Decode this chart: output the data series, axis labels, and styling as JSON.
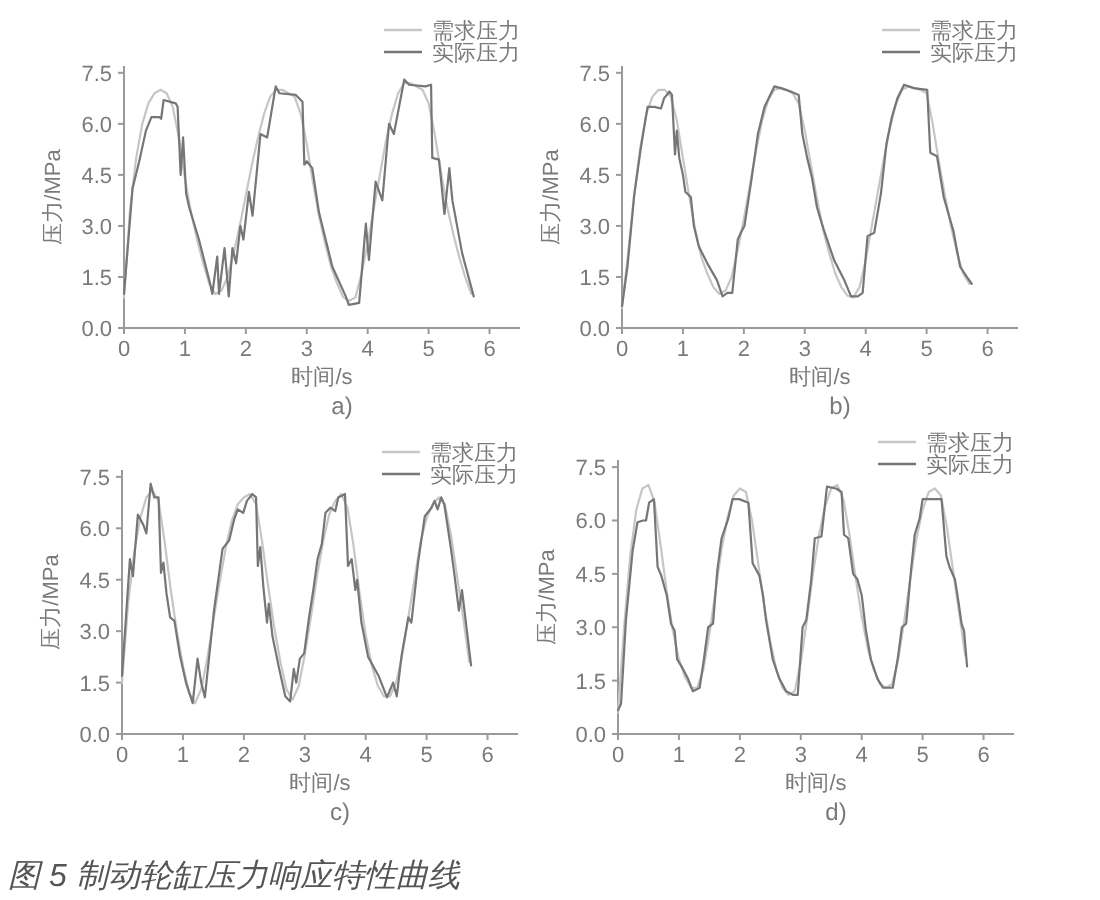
{
  "chart_data": [
    {
      "type": "line",
      "title": "a)",
      "xlabel": "时间/s",
      "ylabel": "压力/MPa",
      "xlim": [
        0,
        6.5
      ],
      "ylim": [
        0,
        7.7
      ],
      "xticks": [
        0,
        1,
        2,
        3,
        4,
        5,
        6
      ],
      "yticks": [
        {
          "value": 0,
          "label": "0.0"
        },
        1.5,
        {
          "value": 3,
          "label": "3.0"
        },
        4.5,
        {
          "value": 6,
          "label": "6.0"
        },
        7.5
      ],
      "legend": "top right",
      "series": [
        {
          "name": "需求压力",
          "color": "#c6c6c6",
          "x": [
            0,
            0.1,
            0.2,
            0.3,
            0.4,
            0.5,
            0.6,
            0.7,
            0.8,
            0.9,
            1.0,
            1.1,
            1.2,
            1.3,
            1.4,
            1.5,
            1.6,
            1.7,
            1.8,
            1.9,
            2.0,
            2.1,
            2.2,
            2.3,
            2.4,
            2.5,
            2.6,
            2.7,
            2.8,
            2.9,
            3.0,
            3.1,
            3.2,
            3.3,
            3.4,
            3.5,
            3.6,
            3.7,
            3.8,
            3.9,
            4.0,
            4.1,
            4.2,
            4.3,
            4.4,
            4.5,
            4.6,
            4.7,
            4.8,
            4.9,
            5.0,
            5.1,
            5.2,
            5.3,
            5.4,
            5.5,
            5.6,
            5.7
          ],
          "values": [
            0.9,
            3.5,
            5.0,
            6.0,
            6.6,
            6.9,
            7.0,
            6.9,
            6.5,
            5.6,
            4.4,
            3.4,
            2.6,
            1.9,
            1.3,
            1.0,
            1.1,
            1.5,
            2.2,
            3.0,
            3.9,
            4.8,
            5.6,
            6.3,
            6.8,
            7.0,
            7.0,
            6.9,
            6.8,
            6.3,
            5.4,
            4.3,
            3.3,
            2.5,
            1.8,
            1.3,
            0.9,
            0.8,
            0.9,
            1.6,
            2.5,
            3.5,
            4.5,
            5.5,
            6.3,
            6.9,
            7.2,
            7.2,
            7.1,
            7.0,
            6.6,
            5.7,
            4.6,
            3.6,
            2.8,
            2.1,
            1.5,
            1.0
          ]
        },
        {
          "name": "实际压力",
          "color": "#767676",
          "x": [
            0,
            0.14,
            0.25,
            0.36,
            0.45,
            0.58,
            0.61,
            0.65,
            0.85,
            0.88,
            0.93,
            0.97,
            1.02,
            1.07,
            1.23,
            1.4,
            1.45,
            1.53,
            1.56,
            1.65,
            1.72,
            1.78,
            1.84,
            1.91,
            1.96,
            2.05,
            2.11,
            2.24,
            2.35,
            2.49,
            2.55,
            2.82,
            2.93,
            2.96,
            3.0,
            3.09,
            3.2,
            3.42,
            3.64,
            3.69,
            3.86,
            3.97,
            4.02,
            4.13,
            4.24,
            4.35,
            4.43,
            4.6,
            4.68,
            4.95,
            5.04,
            5.06,
            5.17,
            5.26,
            5.34,
            5.39,
            5.55,
            5.74
          ],
          "values": [
            1.0,
            4.1,
            4.9,
            5.8,
            6.2,
            6.2,
            6.15,
            6.7,
            6.6,
            6.5,
            4.5,
            5.6,
            3.95,
            3.55,
            2.6,
            1.4,
            1.0,
            2.1,
            1.0,
            2.35,
            0.93,
            2.35,
            1.9,
            3.0,
            2.6,
            4.0,
            3.3,
            5.7,
            5.6,
            7.1,
            6.9,
            6.85,
            6.65,
            4.8,
            4.9,
            4.7,
            3.4,
            1.8,
            0.93,
            0.68,
            0.74,
            3.07,
            2.0,
            4.3,
            3.75,
            6.0,
            5.7,
            7.3,
            7.15,
            7.1,
            7.15,
            5.0,
            4.95,
            3.35,
            4.7,
            3.75,
            2.2,
            0.93
          ]
        }
      ]
    },
    {
      "type": "line",
      "title": "b)",
      "xlabel": "时间/s",
      "ylabel": "压力/MPa",
      "xlim": [
        0,
        6.5
      ],
      "ylim": [
        0,
        7.7
      ],
      "xticks": [
        0,
        1,
        2,
        3,
        4,
        5,
        6
      ],
      "yticks": [
        {
          "value": 0,
          "label": "0.0"
        },
        1.5,
        {
          "value": 3,
          "label": "3.0"
        },
        4.5,
        {
          "value": 6,
          "label": "6.0"
        },
        7.5
      ],
      "legend": "top right",
      "series": [
        {
          "name": "需求压力",
          "color": "#c6c6c6",
          "x": [
            0,
            0.1,
            0.2,
            0.3,
            0.4,
            0.5,
            0.6,
            0.7,
            0.8,
            0.9,
            1.0,
            1.1,
            1.2,
            1.3,
            1.4,
            1.5,
            1.6,
            1.7,
            1.8,
            1.9,
            2.0,
            2.1,
            2.2,
            2.3,
            2.4,
            2.5,
            2.6,
            2.7,
            2.8,
            2.9,
            3.0,
            3.1,
            3.2,
            3.3,
            3.4,
            3.5,
            3.6,
            3.7,
            3.8,
            3.9,
            4.0,
            4.1,
            4.2,
            4.3,
            4.4,
            4.5,
            4.6,
            4.7,
            4.8,
            4.9,
            5.0,
            5.1,
            5.2,
            5.3,
            5.4,
            5.5,
            5.6,
            5.7
          ],
          "values": [
            0.6,
            2.2,
            3.9,
            5.3,
            6.3,
            6.8,
            7.0,
            7.0,
            6.8,
            6.1,
            5.0,
            3.9,
            2.9,
            2.1,
            1.6,
            1.2,
            1.0,
            1.1,
            1.5,
            2.3,
            3.2,
            4.2,
            5.2,
            6.1,
            6.7,
            7.0,
            7.05,
            7.0,
            6.9,
            6.6,
            5.8,
            4.8,
            3.8,
            2.9,
            2.2,
            1.6,
            1.2,
            0.95,
            0.9,
            1.2,
            2.0,
            3.0,
            4.0,
            5.0,
            5.9,
            6.6,
            7.0,
            7.1,
            7.05,
            7.0,
            6.9,
            6.0,
            4.9,
            3.9,
            3.0,
            2.2,
            1.6,
            1.3
          ]
        },
        {
          "name": "实际压力",
          "color": "#767676",
          "x": [
            0,
            0.09,
            0.2,
            0.31,
            0.42,
            0.53,
            0.64,
            0.69,
            0.78,
            0.82,
            0.87,
            0.9,
            0.94,
            1.0,
            1.04,
            1.13,
            1.18,
            1.26,
            1.4,
            1.56,
            1.65,
            1.73,
            1.81,
            1.9,
            1.95,
            2.01,
            2.12,
            2.23,
            2.34,
            2.5,
            2.61,
            2.77,
            2.9,
            2.96,
            3.04,
            3.12,
            3.2,
            3.31,
            3.48,
            3.65,
            3.76,
            3.87,
            3.95,
            4.03,
            4.14,
            4.25,
            4.34,
            4.43,
            4.52,
            4.63,
            4.79,
            5.01,
            5.06,
            5.17,
            5.28,
            5.36,
            5.44,
            5.55,
            5.66,
            5.74
          ],
          "values": [
            0.64,
            1.8,
            3.9,
            5.3,
            6.5,
            6.5,
            6.45,
            6.75,
            6.95,
            6.85,
            5.1,
            5.8,
            5.0,
            4.5,
            4.0,
            3.85,
            3.0,
            2.4,
            1.9,
            1.4,
            0.93,
            1.03,
            1.03,
            2.6,
            2.8,
            3.0,
            4.3,
            5.7,
            6.5,
            7.1,
            7.05,
            6.95,
            6.85,
            5.7,
            5.0,
            4.4,
            3.55,
            2.9,
            2.0,
            1.4,
            0.93,
            0.93,
            1.03,
            2.7,
            2.8,
            3.95,
            5.4,
            6.2,
            6.75,
            7.15,
            7.05,
            7.0,
            5.15,
            5.05,
            3.85,
            3.35,
            2.85,
            1.8,
            1.5,
            1.3
          ]
        }
      ]
    },
    {
      "type": "line",
      "title": "c)",
      "xlabel": "时间/s",
      "ylabel": "压力/MPa",
      "xlim": [
        0,
        6.5
      ],
      "ylim": [
        0,
        7.7
      ],
      "xticks": [
        0,
        1,
        2,
        3,
        4,
        5,
        6
      ],
      "yticks": [
        {
          "value": 0,
          "label": "0.0"
        },
        1.5,
        {
          "value": 3,
          "label": "3.0"
        },
        4.5,
        {
          "value": 6,
          "label": "6.0"
        },
        7.5
      ],
      "legend": "top right",
      "series": [
        {
          "name": "需求压力",
          "color": "#c6c6c6",
          "x": [
            0,
            0.1,
            0.2,
            0.3,
            0.4,
            0.5,
            0.6,
            0.7,
            0.8,
            0.9,
            1.0,
            1.1,
            1.2,
            1.3,
            1.4,
            1.5,
            1.6,
            1.7,
            1.8,
            1.9,
            2.0,
            2.1,
            2.2,
            2.3,
            2.4,
            2.5,
            2.6,
            2.7,
            2.8,
            2.9,
            3.0,
            3.1,
            3.2,
            3.3,
            3.4,
            3.5,
            3.6,
            3.7,
            3.8,
            3.9,
            4.0,
            4.1,
            4.2,
            4.3,
            4.4,
            4.5,
            4.6,
            4.7,
            4.8,
            4.9,
            5.0,
            5.1,
            5.2,
            5.3,
            5.4,
            5.5,
            5.6,
            5.7
          ],
          "values": [
            1.5,
            3.8,
            5.3,
            6.3,
            6.9,
            7.1,
            6.8,
            5.6,
            4.2,
            3.0,
            2.0,
            1.2,
            0.9,
            1.3,
            2.2,
            3.3,
            4.4,
            5.4,
            6.2,
            6.7,
            6.9,
            7.0,
            6.7,
            5.6,
            4.3,
            3.1,
            2.1,
            1.3,
            1.0,
            1.4,
            2.3,
            3.4,
            4.6,
            5.6,
            6.4,
            6.8,
            7.0,
            6.6,
            5.5,
            4.1,
            2.9,
            2.0,
            1.4,
            1.1,
            1.1,
            1.5,
            2.3,
            3.4,
            4.5,
            5.6,
            6.3,
            6.7,
            6.9,
            6.7,
            5.8,
            4.6,
            3.4,
            2.1
          ]
        },
        {
          "name": "实际压力",
          "color": "#767676",
          "x": [
            0,
            0.08,
            0.13,
            0.18,
            0.26,
            0.35,
            0.4,
            0.47,
            0.53,
            0.6,
            0.64,
            0.68,
            0.73,
            0.79,
            0.86,
            0.95,
            1.05,
            1.16,
            1.24,
            1.3,
            1.36,
            1.51,
            1.65,
            1.76,
            1.84,
            1.9,
            1.99,
            2.05,
            2.14,
            2.2,
            2.23,
            2.27,
            2.32,
            2.38,
            2.41,
            2.47,
            2.58,
            2.68,
            2.76,
            2.82,
            2.86,
            2.92,
            2.99,
            3.07,
            3.14,
            3.21,
            3.28,
            3.34,
            3.42,
            3.5,
            3.55,
            3.66,
            3.71,
            3.77,
            3.83,
            3.86,
            3.93,
            4.04,
            4.21,
            4.35,
            4.45,
            4.51,
            4.59,
            4.7,
            4.75,
            4.86,
            4.97,
            5.08,
            5.13,
            5.18,
            5.24,
            5.29,
            5.4,
            5.46,
            5.53,
            5.58,
            5.73
          ],
          "values": [
            1.7,
            3.8,
            5.1,
            4.6,
            6.4,
            6.1,
            5.85,
            7.3,
            6.9,
            6.9,
            4.7,
            5.0,
            4.1,
            3.4,
            3.3,
            2.3,
            1.5,
            0.9,
            2.2,
            1.5,
            1.07,
            3.6,
            5.4,
            5.65,
            6.25,
            6.55,
            6.45,
            6.8,
            7.0,
            6.9,
            4.9,
            5.45,
            4.3,
            3.25,
            3.8,
            2.85,
            1.9,
            1.1,
            0.95,
            1.9,
            1.5,
            2.2,
            2.35,
            3.4,
            4.2,
            5.1,
            5.55,
            6.45,
            6.6,
            6.5,
            6.9,
            7.0,
            4.9,
            5.1,
            4.2,
            4.5,
            3.25,
            2.25,
            1.7,
            1.07,
            1.5,
            1.1,
            2.3,
            3.4,
            3.25,
            5.0,
            6.35,
            6.6,
            6.8,
            6.55,
            6.9,
            6.7,
            5.4,
            4.6,
            3.6,
            4.2,
            2.0
          ]
        }
      ]
    },
    {
      "type": "line",
      "title": "d)",
      "xlabel": "时间/s",
      "ylabel": "压力/MPa",
      "xlim": [
        0,
        6.5
      ],
      "ylim": [
        0,
        7.7
      ],
      "xticks": [
        0,
        1,
        2,
        3,
        4,
        5,
        6
      ],
      "yticks": [
        {
          "value": 0,
          "label": "0.0"
        },
        1.5,
        {
          "value": 3,
          "label": "3.0"
        },
        4.5,
        {
          "value": 6,
          "label": "6.0"
        },
        7.5
      ],
      "legend": "top right",
      "annotations": [
        "图 5 制动轮缸压力响应特性曲线"
      ],
      "series": [
        {
          "name": "需求压力",
          "color": "#c6c6c6",
          "x": [
            0,
            0.1,
            0.2,
            0.3,
            0.4,
            0.5,
            0.6,
            0.7,
            0.8,
            0.9,
            1.0,
            1.1,
            1.2,
            1.3,
            1.4,
            1.5,
            1.6,
            1.7,
            1.8,
            1.9,
            2.0,
            2.1,
            2.2,
            2.3,
            2.4,
            2.5,
            2.6,
            2.7,
            2.8,
            2.9,
            3.0,
            3.1,
            3.2,
            3.3,
            3.4,
            3.5,
            3.6,
            3.7,
            3.8,
            3.9,
            4.0,
            4.1,
            4.2,
            4.3,
            4.4,
            4.5,
            4.6,
            4.7,
            4.8,
            4.9,
            5.0,
            5.1,
            5.2,
            5.3,
            5.4,
            5.5,
            5.6,
            5.7
          ],
          "values": [
            0.6,
            3.0,
            5.0,
            6.3,
            6.9,
            7.0,
            6.5,
            5.3,
            4.0,
            2.9,
            2.1,
            1.6,
            1.3,
            1.3,
            1.8,
            2.8,
            4.0,
            5.2,
            6.1,
            6.7,
            6.9,
            6.8,
            6.0,
            4.8,
            3.6,
            2.6,
            1.8,
            1.3,
            1.1,
            1.2,
            2.0,
            3.2,
            4.5,
            5.6,
            6.4,
            6.9,
            7.0,
            6.6,
            5.6,
            4.4,
            3.3,
            2.4,
            1.8,
            1.4,
            1.3,
            1.4,
            2.1,
            3.2,
            4.4,
            5.5,
            6.3,
            6.8,
            6.9,
            6.7,
            5.8,
            4.6,
            3.4,
            2.2
          ]
        },
        {
          "name": "实际压力",
          "color": "#767676",
          "x": [
            0,
            0.05,
            0.13,
            0.24,
            0.32,
            0.41,
            0.46,
            0.51,
            0.59,
            0.65,
            0.71,
            0.8,
            0.87,
            0.93,
            0.97,
            1.06,
            1.15,
            1.23,
            1.34,
            1.41,
            1.48,
            1.56,
            1.63,
            1.7,
            1.81,
            1.88,
            1.99,
            2.14,
            2.21,
            2.32,
            2.38,
            2.43,
            2.54,
            2.65,
            2.76,
            2.87,
            2.95,
            3.03,
            3.09,
            3.17,
            3.23,
            3.34,
            3.43,
            3.58,
            3.67,
            3.71,
            3.78,
            3.86,
            3.93,
            4.0,
            4.07,
            4.15,
            4.26,
            4.35,
            4.51,
            4.59,
            4.66,
            4.73,
            4.81,
            4.87,
            4.95,
            5.0,
            5.17,
            5.31,
            5.39,
            5.44,
            5.53,
            5.59,
            5.64,
            5.68,
            5.73
          ],
          "values": [
            0.67,
            0.85,
            3.2,
            5.15,
            5.95,
            6.0,
            6.0,
            6.5,
            6.6,
            4.7,
            4.45,
            3.9,
            3.1,
            2.9,
            2.1,
            1.85,
            1.55,
            1.2,
            1.3,
            2.1,
            3.0,
            3.1,
            4.6,
            5.5,
            6.05,
            6.6,
            6.6,
            6.5,
            4.8,
            4.45,
            3.9,
            3.2,
            2.1,
            1.55,
            1.2,
            1.1,
            1.1,
            3.0,
            3.2,
            4.3,
            5.5,
            5.55,
            6.95,
            6.9,
            6.8,
            5.6,
            5.5,
            4.5,
            4.35,
            3.9,
            2.9,
            2.1,
            1.55,
            1.3,
            1.3,
            2.1,
            3.0,
            3.1,
            4.6,
            5.6,
            6.05,
            6.6,
            6.6,
            6.6,
            5.0,
            4.7,
            4.35,
            3.7,
            3.1,
            2.9,
            1.9
          ]
        }
      ]
    }
  ]
}
